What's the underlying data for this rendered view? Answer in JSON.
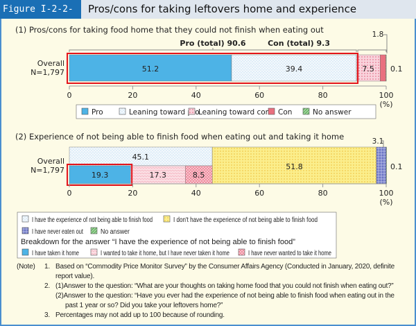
{
  "figure": {
    "number": "Figure I-2-2-13",
    "title": "Pros/cons for taking leftovers home and experience"
  },
  "chart_data": [
    {
      "type": "bar",
      "orientation": "horizontal",
      "stacked": true,
      "title": "(1) Pros/cons for taking food home that they could not finish when eating out",
      "category_label": [
        "Overall",
        "N=1,797"
      ],
      "xlim": [
        0,
        100
      ],
      "xticks": [
        0,
        20,
        40,
        60,
        80,
        100
      ],
      "xunit": "(%)",
      "series": [
        {
          "name": "Pro",
          "values": [
            51.2
          ],
          "color": "#4db3e6",
          "pattern": "solid"
        },
        {
          "name": "Leaning toward pro",
          "values": [
            39.4
          ],
          "color": "#dcecf8",
          "pattern": "lattice"
        },
        {
          "name": "Leaning toward con",
          "values": [
            7.5
          ],
          "color": "#f9d3dc",
          "pattern": "dots"
        },
        {
          "name": "Con",
          "values": [
            1.8
          ],
          "color": "#e9707f",
          "pattern": "solid"
        },
        {
          "name": "No answer",
          "values": [
            0.1
          ],
          "color": "#9fd49b",
          "pattern": "hatch"
        }
      ],
      "data_labels": [
        "51.2",
        "39.4",
        "7.5",
        "1.8",
        "0.1"
      ],
      "annotations": {
        "pro_total": "Pro (total) 90.6",
        "con_total": "Con (total) 9.3"
      },
      "legend_placement": "bottom"
    },
    {
      "type": "bar",
      "orientation": "horizontal",
      "stacked": true,
      "title": "(2) Experience of not being able to finish food when eating out and taking it home",
      "category_label": [
        "Overall",
        "N=1,797"
      ],
      "xlim": [
        0,
        100
      ],
      "xticks": [
        0,
        20,
        40,
        60,
        80,
        100
      ],
      "xunit": "(%)",
      "series": [
        {
          "name": "I have the experience of not being able to finish food",
          "values": [
            45.1
          ],
          "color": "#dcecf8",
          "pattern": "lattice"
        },
        {
          "name": "I don't have the experience of not being able to finish food",
          "values": [
            51.8
          ],
          "color": "#fbee8c",
          "pattern": "dots"
        },
        {
          "name": "I have never eaten out",
          "values": [
            3.1
          ],
          "color": "#6b74c4",
          "pattern": "grid"
        },
        {
          "name": "No answer",
          "values": [
            0.1
          ],
          "color": "#9fd49b",
          "pattern": "hatch"
        }
      ],
      "breakdown": {
        "title": "Breakdown for the answer “I have the experience of not being able to finish food”",
        "series": [
          {
            "name": "I have taken it home",
            "values": [
              19.3
            ],
            "color": "#4db3e6",
            "pattern": "solid"
          },
          {
            "name": "I wanted to take it home, but I have never taken it home",
            "values": [
              17.3
            ],
            "color": "#fbdde3",
            "pattern": "wave"
          },
          {
            "name": "I have never wanted to take it home",
            "values": [
              8.5
            ],
            "color": "#ef8d9e",
            "pattern": "checker"
          }
        ]
      },
      "data_labels": [
        "45.1",
        "51.8",
        "3.1",
        "0.1",
        "19.3",
        "17.3",
        "8.5"
      ],
      "legend_placement": "bottom"
    }
  ],
  "notes": {
    "label": "(Note)",
    "items": [
      {
        "num": "1.",
        "lines": [
          "Based on “Commodity Price Monitor Survey” by the Consumer Affairs Agency (Conducted in January, 2020, definite",
          "report value)."
        ]
      },
      {
        "num": "2.",
        "lines": [
          "(1)Answer to the question: “What are your thoughts on taking home food that you could not finish when eating out?”",
          "(2)Answer to the question: “Have you ever had the experience of not being able to finish food when eating out in the",
          "past 1 year or so? Did you take your leftovers home?”"
        ]
      },
      {
        "num": "3.",
        "lines": [
          "Percentages may not add up to 100 because of rounding."
        ]
      }
    ]
  }
}
